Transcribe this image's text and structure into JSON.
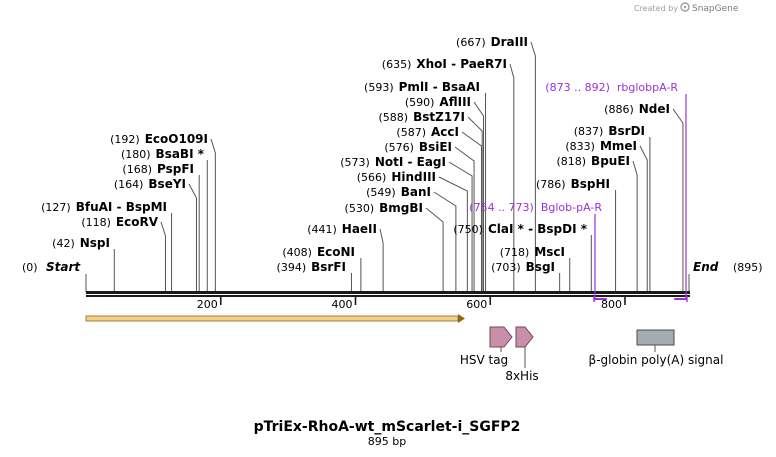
{
  "header": {
    "created_by": "Created by",
    "brand": "SnapGene",
    "logo_icon": "snapgene-logo-icon"
  },
  "map": {
    "start_label": "Start",
    "start_pos": "(0)",
    "end_label": "End",
    "end_pos": "(895)",
    "length_bp": 895
  },
  "ticks": [
    {
      "bp": 200,
      "label": "200"
    },
    {
      "bp": 400,
      "label": "400"
    },
    {
      "bp": 600,
      "label": "600"
    },
    {
      "bp": 800,
      "label": "800"
    }
  ],
  "enzymes": [
    {
      "pos": "(42)",
      "name": "NspI",
      "site": 42
    },
    {
      "pos": "(118)",
      "name": "EcoRV",
      "site": 118
    },
    {
      "pos": "(127)",
      "name": "BfuAI  -  BspMI",
      "site": 127
    },
    {
      "pos": "(164)",
      "name": "BseYI",
      "site": 164
    },
    {
      "pos": "(168)",
      "name": "PspFI",
      "site": 168
    },
    {
      "pos": "(180)",
      "name": "BsaBI *",
      "site": 180
    },
    {
      "pos": "(192)",
      "name": "EcoO109I",
      "site": 192
    },
    {
      "pos": "(394)",
      "name": "BsrFI",
      "site": 394
    },
    {
      "pos": "(408)",
      "name": "EcoNI",
      "site": 408
    },
    {
      "pos": "(441)",
      "name": "HaeII",
      "site": 441
    },
    {
      "pos": "(530)",
      "name": "BmgBI",
      "site": 530
    },
    {
      "pos": "(549)",
      "name": "BanI",
      "site": 549
    },
    {
      "pos": "(566)",
      "name": "HindIII",
      "site": 566
    },
    {
      "pos": "(573)",
      "name": "NotI  -  EagI",
      "site": 573
    },
    {
      "pos": "(576)",
      "name": "BsiEI",
      "site": 576
    },
    {
      "pos": "(587)",
      "name": "AccI",
      "site": 587
    },
    {
      "pos": "(588)",
      "name": "BstZ17I",
      "site": 588
    },
    {
      "pos": "(590)",
      "name": "AflIII",
      "site": 590
    },
    {
      "pos": "(593)",
      "name": "PmlI  -  BsaAI",
      "site": 593
    },
    {
      "pos": "(635)",
      "name": "XhoI  -  PaeR7I",
      "site": 635
    },
    {
      "pos": "(667)",
      "name": "DraIII",
      "site": 667
    },
    {
      "pos": "(703)",
      "name": "BsgI",
      "site": 703
    },
    {
      "pos": "(718)",
      "name": "MscI",
      "site": 718
    },
    {
      "pos": "(750)",
      "name": "ClaI *  -  BspDI *",
      "site": 750
    },
    {
      "pos": "(786)",
      "name": "BspHI",
      "site": 786
    },
    {
      "pos": "(818)",
      "name": "BpuEI",
      "site": 818
    },
    {
      "pos": "(833)",
      "name": "MmeI",
      "site": 833
    },
    {
      "pos": "(837)",
      "name": "BsrDI",
      "site": 837
    },
    {
      "pos": "(886)",
      "name": "NdeI",
      "site": 886
    }
  ],
  "primers": [
    {
      "range": "(754 .. 773)",
      "name": "Bglob-pA-R",
      "start": 754,
      "end": 773
    },
    {
      "range": "(873 .. 892)",
      "name": "rbglobpA-R",
      "start": 873,
      "end": 892
    }
  ],
  "features": [
    {
      "name": "HSV tag",
      "type": "arrow"
    },
    {
      "name": "8xHis",
      "type": "arrow"
    },
    {
      "name": "β-globin poly(A) signal",
      "type": "box"
    }
  ],
  "colors": {
    "backbone": "#1a1a1a",
    "primer": "#9b30d9",
    "orf_fill": "#f3d189",
    "orf_stroke": "#8a6a1e",
    "tag_fill": "#c98ea8",
    "polya_fill": "#a7abb1",
    "leader_line": "#555555"
  },
  "footer": {
    "title": "pTriEx-RhoA-wt_mScarlet-i_SGFP2",
    "subtitle": "895 bp"
  }
}
